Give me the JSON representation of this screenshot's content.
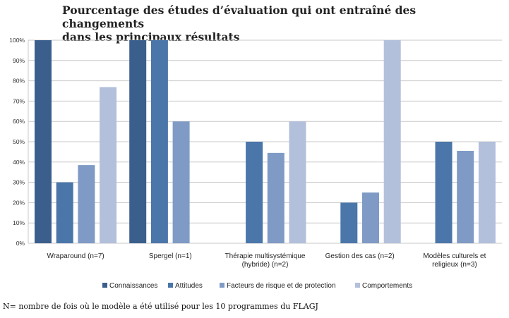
{
  "chart_data": {
    "type": "bar",
    "title_line1": "Pourcentage des études d’évaluation qui ont entraîné des changements",
    "title_line2": "dans les principaux résultats",
    "categories": [
      [
        "Wraparound (n=7)"
      ],
      [
        "Spergel (n=1)"
      ],
      [
        "Thérapie multisystémique",
        "(hybride) (n=2)"
      ],
      [
        "Gestion des cas (n=2)"
      ],
      [
        "Modèles culturels et",
        "religieux (n=3)"
      ]
    ],
    "series": [
      {
        "name": "Connaissances",
        "color": "#3b5f8d",
        "values": [
          100,
          100,
          null,
          null,
          null
        ]
      },
      {
        "name": "Attitudes",
        "color": "#4a76aa",
        "values": [
          30,
          100,
          50,
          20,
          50
        ]
      },
      {
        "name": "Facteurs de risque et de protection",
        "color": "#7f9bc5",
        "values": [
          38.5,
          60,
          44.5,
          25,
          45.5
        ]
      },
      {
        "name": "Comportements",
        "color": "#b3c0db",
        "values": [
          76.9,
          null,
          60,
          100,
          50
        ]
      }
    ],
    "y_ticks": [
      "0%",
      "10%",
      "20%",
      "30%",
      "40%",
      "50%",
      "60%",
      "70%",
      "80%",
      "90%",
      "100%"
    ],
    "ylim": [
      0,
      100
    ],
    "grid": true,
    "legend_position": "bottom"
  },
  "footnote": "N= nombre de fois où le modèle a été utilisé pour les 10 programmes du FLAGJ"
}
